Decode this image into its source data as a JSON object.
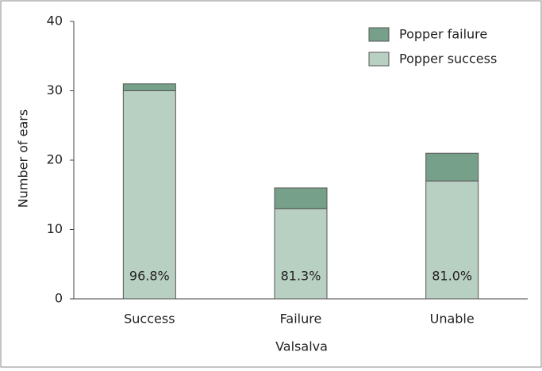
{
  "chart_data": {
    "type": "stacked-bar",
    "x_label": "Valsalva",
    "y_label": "Number of ears",
    "categories": [
      "Success",
      "Failure",
      "Unable"
    ],
    "series": [
      {
        "name": "Popper success",
        "color": "#b8d0c2",
        "values": [
          30,
          13,
          17
        ]
      },
      {
        "name": "Popper failure",
        "color": "#77a08a",
        "values": [
          1,
          3,
          4
        ]
      }
    ],
    "annotations": [
      "96.8%",
      "81.3%",
      "81.0%"
    ],
    "ylim": [
      0,
      40
    ],
    "yticks": [
      0,
      10,
      20,
      30,
      40
    ],
    "grid": false,
    "legend": "top-right"
  }
}
